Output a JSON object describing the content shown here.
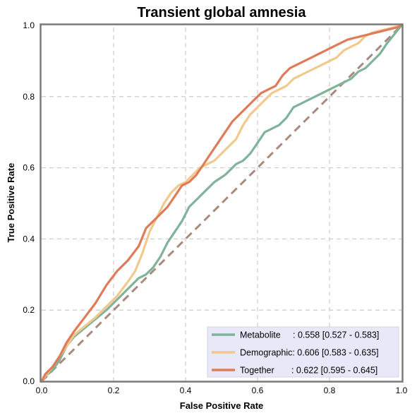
{
  "chart_data": {
    "type": "line",
    "title": "Transient global amnesia",
    "xlabel": "False Positive Rate",
    "ylabel": "True Positive Rate",
    "xlim": [
      0,
      1
    ],
    "ylim": [
      0,
      1
    ],
    "xticks": [
      "0.0",
      "0.2",
      "0.4",
      "0.6",
      "0.8",
      "1.0"
    ],
    "yticks": [
      "0.0",
      "0.2",
      "0.4",
      "0.6",
      "0.8",
      "1.0"
    ],
    "grid": true,
    "legend_position": "bottom-right",
    "reference_line": {
      "x": [
        0,
        1
      ],
      "y": [
        0,
        1
      ],
      "color": "#a88a7e",
      "style": "dashed"
    },
    "series": [
      {
        "name": "Metabolite",
        "legend_label": "Metabolite     : 0.558 [0.527 - 0.583]",
        "color": "#7fb39a",
        "x": [
          0,
          0.01,
          0.03,
          0.05,
          0.07,
          0.09,
          0.12,
          0.15,
          0.18,
          0.21,
          0.24,
          0.27,
          0.29,
          0.31,
          0.33,
          0.35,
          0.37,
          0.39,
          0.41,
          0.43,
          0.45,
          0.48,
          0.51,
          0.54,
          0.56,
          0.58,
          0.6,
          0.62,
          0.64,
          0.66,
          0.68,
          0.7,
          0.72,
          0.74,
          0.76,
          0.78,
          0.8,
          0.82,
          0.84,
          0.86,
          0.88,
          0.9,
          0.92,
          0.94,
          0.96,
          0.98,
          1.0
        ],
        "y": [
          0,
          0.015,
          0.03,
          0.06,
          0.1,
          0.125,
          0.15,
          0.175,
          0.2,
          0.23,
          0.26,
          0.29,
          0.3,
          0.32,
          0.35,
          0.39,
          0.42,
          0.45,
          0.49,
          0.51,
          0.53,
          0.56,
          0.58,
          0.61,
          0.62,
          0.64,
          0.67,
          0.7,
          0.71,
          0.72,
          0.74,
          0.77,
          0.78,
          0.79,
          0.8,
          0.81,
          0.82,
          0.83,
          0.84,
          0.85,
          0.87,
          0.88,
          0.9,
          0.92,
          0.95,
          0.975,
          1.0
        ]
      },
      {
        "name": "Demographic",
        "legend_label": "Demographic: 0.606 [0.583 - 0.635]",
        "color": "#f2c98c",
        "x": [
          0,
          0.01,
          0.03,
          0.05,
          0.07,
          0.09,
          0.12,
          0.15,
          0.18,
          0.21,
          0.24,
          0.26,
          0.28,
          0.3,
          0.32,
          0.34,
          0.36,
          0.38,
          0.4,
          0.42,
          0.44,
          0.46,
          0.48,
          0.5,
          0.52,
          0.54,
          0.56,
          0.58,
          0.6,
          0.62,
          0.64,
          0.66,
          0.68,
          0.7,
          0.72,
          0.74,
          0.76,
          0.78,
          0.8,
          0.82,
          0.84,
          0.86,
          0.88,
          0.9,
          0.92,
          0.94,
          0.96,
          0.98,
          1.0
        ],
        "y": [
          0,
          0.015,
          0.04,
          0.07,
          0.1,
          0.13,
          0.155,
          0.18,
          0.21,
          0.24,
          0.28,
          0.31,
          0.36,
          0.42,
          0.46,
          0.5,
          0.53,
          0.55,
          0.56,
          0.58,
          0.6,
          0.61,
          0.62,
          0.64,
          0.66,
          0.68,
          0.72,
          0.75,
          0.77,
          0.79,
          0.81,
          0.82,
          0.83,
          0.85,
          0.86,
          0.87,
          0.88,
          0.89,
          0.9,
          0.91,
          0.93,
          0.94,
          0.95,
          0.97,
          0.98,
          0.985,
          0.99,
          0.995,
          1.0
        ]
      },
      {
        "name": "Together",
        "legend_label": "Together       : 0.622 [0.595 - 0.645]",
        "color": "#e07b5a",
        "x": [
          0,
          0.01,
          0.03,
          0.05,
          0.07,
          0.09,
          0.12,
          0.15,
          0.18,
          0.21,
          0.24,
          0.27,
          0.29,
          0.31,
          0.33,
          0.35,
          0.37,
          0.39,
          0.41,
          0.43,
          0.45,
          0.47,
          0.49,
          0.51,
          0.53,
          0.55,
          0.57,
          0.59,
          0.61,
          0.63,
          0.65,
          0.67,
          0.69,
          0.71,
          0.73,
          0.75,
          0.77,
          0.79,
          0.81,
          0.83,
          0.85,
          0.87,
          0.89,
          0.91,
          0.93,
          0.95,
          0.97,
          0.99,
          1.0
        ],
        "y": [
          0,
          0.02,
          0.04,
          0.07,
          0.11,
          0.14,
          0.18,
          0.22,
          0.27,
          0.31,
          0.34,
          0.38,
          0.43,
          0.45,
          0.47,
          0.49,
          0.52,
          0.55,
          0.56,
          0.58,
          0.61,
          0.64,
          0.67,
          0.7,
          0.73,
          0.75,
          0.77,
          0.79,
          0.81,
          0.82,
          0.83,
          0.86,
          0.88,
          0.89,
          0.9,
          0.91,
          0.92,
          0.93,
          0.94,
          0.95,
          0.96,
          0.965,
          0.97,
          0.975,
          0.98,
          0.985,
          0.99,
          0.995,
          1.0
        ]
      }
    ]
  }
}
